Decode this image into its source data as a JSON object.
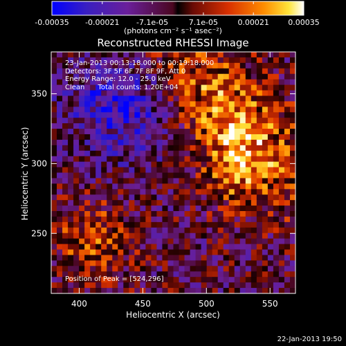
{
  "colorbar": {
    "ticks": [
      -0.00035,
      -0.00021,
      -7.1e-05,
      7.1e-05,
      0.00021,
      0.00035
    ],
    "tick_labels": [
      "-0.00035",
      "-0.00021",
      "-7.1e-05",
      "7.1e-05",
      "0.00021",
      "0.00035"
    ],
    "title": "(photons cm⁻² s⁻¹ asec⁻²)",
    "range": [
      -0.00035,
      0.00035
    ]
  },
  "colors": {
    "background": "#000000",
    "axes": "#ffffff",
    "colormap": [
      "#0000ff",
      "#4c1a9e",
      "#7a1f8a",
      "#b8141a",
      "#e84a00",
      "#ff9a00",
      "#ffe03a",
      "#ffffff"
    ]
  },
  "chart_data": {
    "type": "heatmap",
    "title": "Reconstructed RHESSI Image",
    "xlabel": "Heliocentric X (arcsec)",
    "ylabel": "Heliocentric Y (arcsec)",
    "xlim": [
      378,
      570
    ],
    "ylim": [
      207,
      380
    ],
    "xticks": [
      400,
      450,
      500,
      550
    ],
    "yticks": [
      250,
      300,
      350
    ],
    "tick_labels_x": [
      "400",
      "450",
      "500",
      "550"
    ],
    "tick_labels_y": [
      "250",
      "300",
      "350"
    ],
    "annotations": [
      "23-Jan-2013 00:13:18.000 to 00:19:18.000",
      "Detectors: 3F 5F 6F 7F 8F 9F, Att 0",
      "Energy Range: 12.0 - 25.0 keV",
      "Clean      Total counts: 1.20E+04"
    ],
    "peak_text": "Position of Peak = [524,296]",
    "peak_position": [
      524,
      296
    ],
    "colorscale": "red-temperature",
    "grid": false
  },
  "footer": {
    "timestamp": "22-Jan-2013 19:50"
  }
}
